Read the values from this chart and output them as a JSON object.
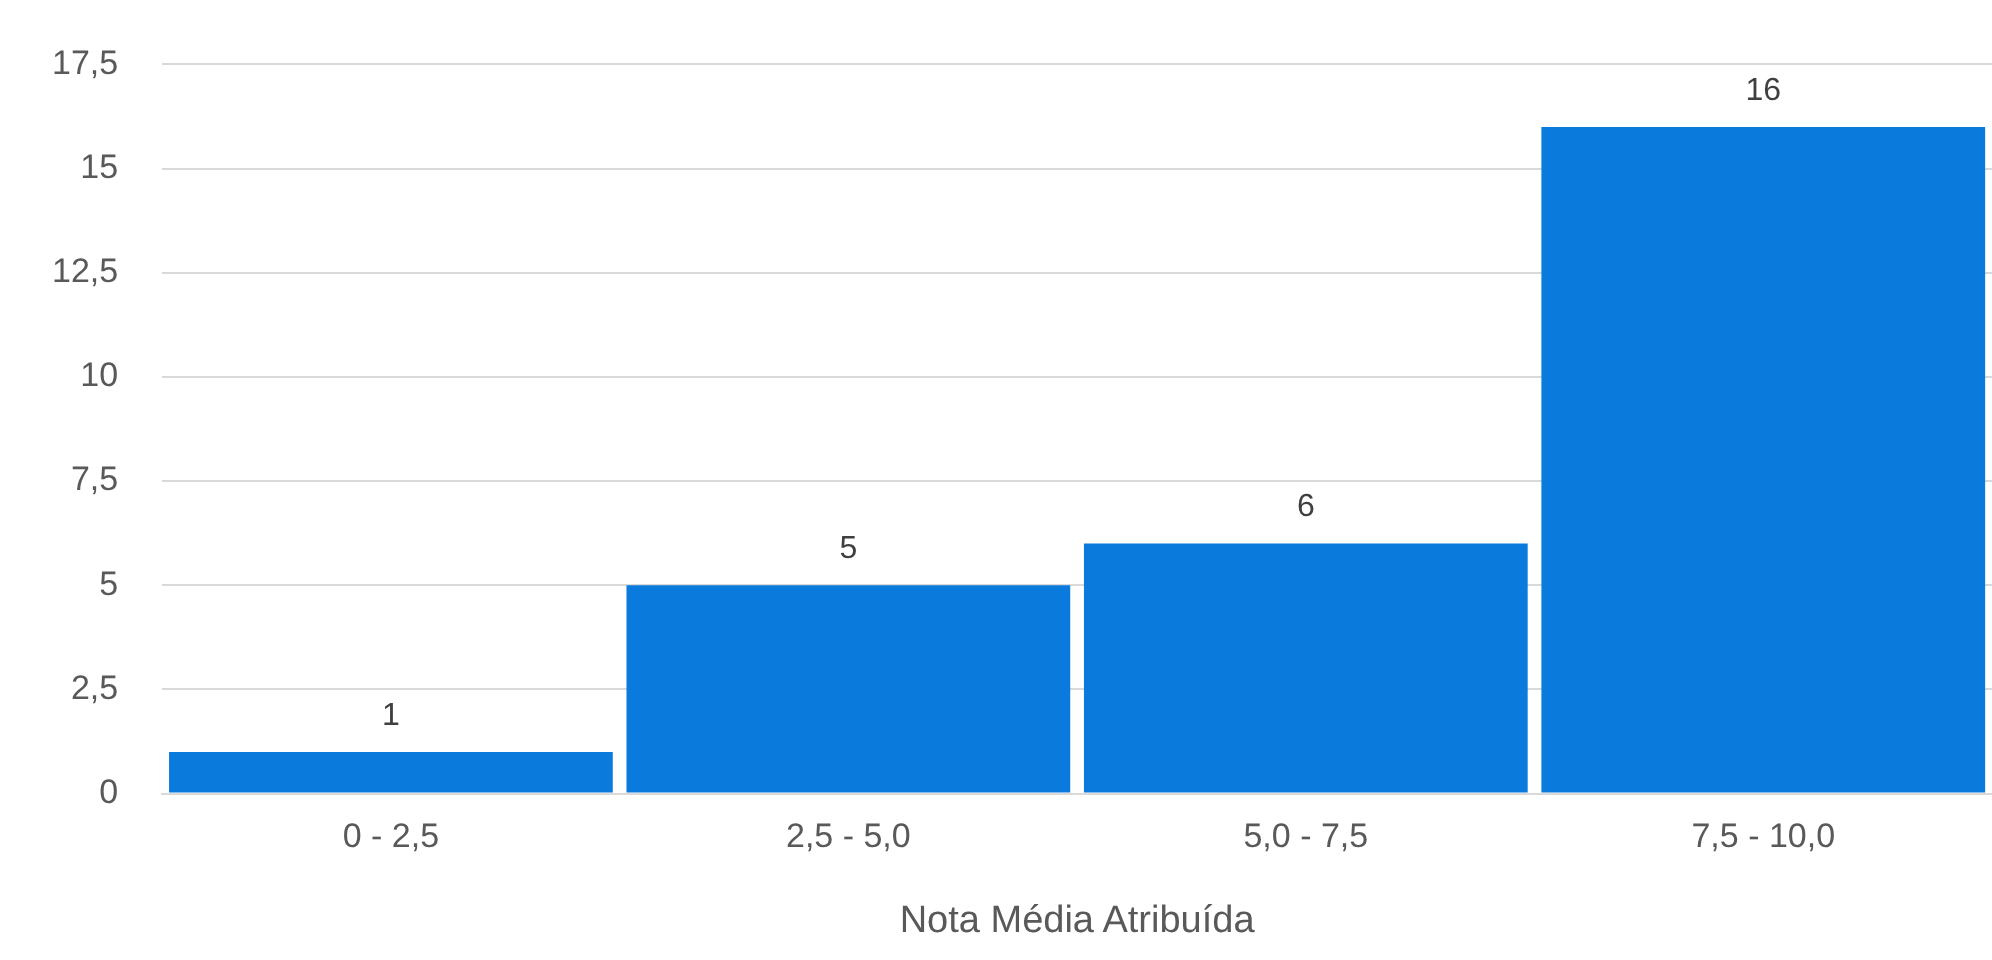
{
  "chart_data": {
    "type": "bar",
    "xlabel": "Nota Média Atribuída",
    "categories": [
      "0 - 2,5",
      "2,5 - 5,0",
      "5,0 - 7,5",
      "7,5 - 10,0"
    ],
    "values": [
      1,
      5,
      6,
      16
    ],
    "color": "#0a7bdc",
    "ylim": [
      0,
      17.5
    ],
    "yticks": [
      0,
      {
        "value": 2.5,
        "label": "2,5"
      },
      5,
      {
        "value": 7.5,
        "label": "7,5"
      },
      10,
      {
        "value": 12.5,
        "label": "12,5"
      },
      15,
      {
        "value": 17.5,
        "label": "17,5"
      }
    ],
    "grid": "y",
    "data_labels": true,
    "legend": false
  }
}
